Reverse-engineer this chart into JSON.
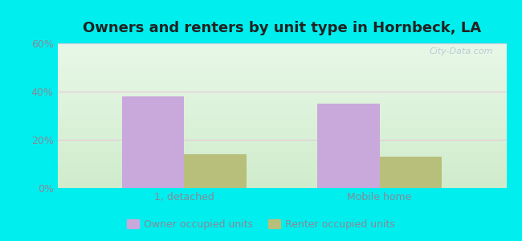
{
  "title": "Owners and renters by unit type in Hornbeck, LA",
  "categories": [
    "1, detached",
    "Mobile home"
  ],
  "owner_values": [
    38,
    35
  ],
  "renter_values": [
    14,
    13
  ],
  "owner_color": "#c9a8dc",
  "renter_color": "#b8bf7a",
  "ylim": [
    0,
    60
  ],
  "yticks": [
    0,
    20,
    40,
    60
  ],
  "ytick_labels": [
    "0%",
    "20%",
    "40%",
    "60%"
  ],
  "bar_width": 0.32,
  "outer_bg": "#00eeee",
  "watermark": "City-Data.com",
  "legend_owner": "Owner occupied units",
  "legend_renter": "Renter occupied units",
  "bg_top": "#e8f8e8",
  "bg_bottom": "#d0eccc",
  "grid_color": "#e8c8d8",
  "tick_color": "#888899",
  "title_color": "#222222"
}
